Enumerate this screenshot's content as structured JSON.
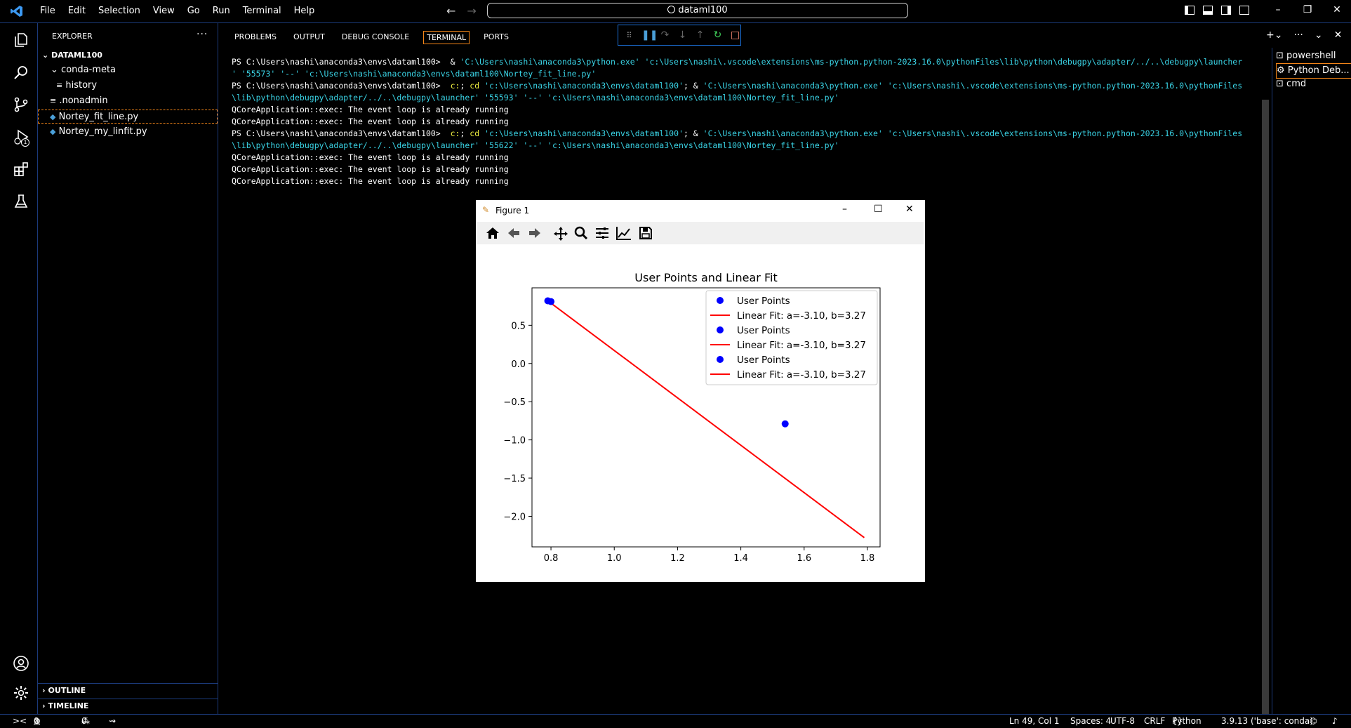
{
  "titlebar": {
    "menu": [
      "File",
      "Edit",
      "Selection",
      "View",
      "Go",
      "Run",
      "Terminal",
      "Help"
    ],
    "search": "dataml100"
  },
  "activity_bar": {
    "icons": [
      "explorer-icon",
      "search-icon",
      "source-control-icon",
      "run-debug-icon",
      "extensions-icon",
      "testing-icon",
      "account-icon",
      "settings-gear-icon"
    ],
    "debug_badge": "1"
  },
  "sidebar": {
    "header": "EXPLORER",
    "more": "···",
    "root": "DATAML100",
    "items": [
      {
        "label": "conda-meta",
        "kind": "folder"
      },
      {
        "label": "history",
        "kind": "file-lines"
      },
      {
        "label": ".nonadmin",
        "kind": "file-lines"
      },
      {
        "label": "Nortey_fit_line.py",
        "kind": "python"
      },
      {
        "label": "Nortey_my_linfit.py",
        "kind": "python"
      }
    ],
    "outline": "OUTLINE",
    "timeline": "TIMELINE"
  },
  "panel": {
    "tabs": [
      "PROBLEMS",
      "OUTPUT",
      "DEBUG CONSOLE",
      "TERMINAL",
      "PORTS"
    ],
    "active_tab": "TERMINAL"
  },
  "terminal_lines": [
    {
      "prompt": "PS C:\\Users\\nashi\\anaconda3\\envs\\dataml100>  ",
      "parts": [
        {
          "t": "& ",
          "c": "w"
        },
        {
          "t": "'C:\\Users\\nashi\\anaconda3\\python.exe' 'c:\\Users\\nashi\\.vscode\\extensions\\ms-python.python-2023.16.0\\pythonFiles\\lib\\python\\debugpy\\adapter/../..\\debugpy\\launcher",
          "c": "c"
        }
      ]
    },
    {
      "prompt": "",
      "parts": [
        {
          "t": "' '55573' '--' 'c:\\Users\\nashi\\anaconda3\\envs\\dataml100\\Nortey_fit_line.py'",
          "c": "c"
        }
      ]
    },
    {
      "prompt": "PS C:\\Users\\nashi\\anaconda3\\envs\\dataml100>  ",
      "parts": [
        {
          "t": "c:",
          "c": "y"
        },
        {
          "t": "; ",
          "c": "w"
        },
        {
          "t": "cd ",
          "c": "y"
        },
        {
          "t": "'c:\\Users\\nashi\\anaconda3\\envs\\dataml100'",
          "c": "c"
        },
        {
          "t": "; & ",
          "c": "w"
        },
        {
          "t": "'C:\\Users\\nashi\\anaconda3\\python.exe' 'c:\\Users\\nashi\\.vscode\\extensions\\ms-python.python-2023.16.0\\pythonFiles",
          "c": "c"
        }
      ]
    },
    {
      "prompt": "",
      "parts": [
        {
          "t": "\\lib\\python\\debugpy\\adapter/../..\\debugpy\\launcher' '55593' '--' 'c:\\Users\\nashi\\anaconda3\\envs\\dataml100\\Nortey_fit_line.py'",
          "c": "c"
        }
      ]
    },
    {
      "prompt": "",
      "parts": [
        {
          "t": "QCoreApplication::exec: The event loop is already running",
          "c": "w"
        }
      ]
    },
    {
      "prompt": "",
      "parts": [
        {
          "t": "QCoreApplication::exec: The event loop is already running",
          "c": "w"
        }
      ]
    },
    {
      "prompt": "PS C:\\Users\\nashi\\anaconda3\\envs\\dataml100>  ",
      "parts": [
        {
          "t": "c:",
          "c": "y"
        },
        {
          "t": "; ",
          "c": "w"
        },
        {
          "t": "cd ",
          "c": "y"
        },
        {
          "t": "'c:\\Users\\nashi\\anaconda3\\envs\\dataml100'",
          "c": "c"
        },
        {
          "t": "; & ",
          "c": "w"
        },
        {
          "t": "'C:\\Users\\nashi\\anaconda3\\python.exe' 'c:\\Users\\nashi\\.vscode\\extensions\\ms-python.python-2023.16.0\\pythonFiles",
          "c": "c"
        }
      ]
    },
    {
      "prompt": "",
      "parts": [
        {
          "t": "\\lib\\python\\debugpy\\adapter/../..\\debugpy\\launcher' '55622' '--' 'c:\\Users\\nashi\\anaconda3\\envs\\dataml100\\Nortey_fit_line.py'",
          "c": "c"
        }
      ]
    },
    {
      "prompt": "",
      "parts": [
        {
          "t": "QCoreApplication::exec: The event loop is already running",
          "c": "w"
        }
      ]
    },
    {
      "prompt": "",
      "parts": [
        {
          "t": "QCoreApplication::exec: The event loop is already running",
          "c": "w"
        }
      ]
    },
    {
      "prompt": "",
      "parts": [
        {
          "t": "QCoreApplication::exec: The event loop is already running",
          "c": "w"
        }
      ]
    }
  ],
  "terminal_list": [
    "powershell",
    "Python Deb...",
    "cmd"
  ],
  "figure_window": {
    "title": "Figure 1",
    "toolbar": [
      "home-icon",
      "back-arrow-icon",
      "forward-arrow-icon",
      "pan-icon",
      "zoom-icon",
      "configure-subplots-icon",
      "edit-axis-icon",
      "save-icon"
    ]
  },
  "chart_data": {
    "type": "scatter",
    "title": "User Points and Linear Fit",
    "xlabel": "",
    "ylabel": "",
    "xlim": [
      0.74,
      1.84
    ],
    "ylim": [
      -2.4,
      0.99
    ],
    "xticks": [
      "0.8",
      "1.0",
      "1.2",
      "1.4",
      "1.6",
      "1.8"
    ],
    "yticks": [
      "0.5",
      "0.0",
      "−0.5",
      "−1.0",
      "−1.5",
      "−2.0"
    ],
    "grid": false,
    "legend_position": "top-right",
    "points": [
      {
        "x": 0.79,
        "y": 0.82
      },
      {
        "x": 0.8,
        "y": 0.81
      },
      {
        "x": 1.54,
        "y": -0.79
      }
    ],
    "fit_line": {
      "slope": -3.1,
      "intercept": 3.27,
      "x_range": [
        0.79,
        1.79
      ]
    },
    "legend": [
      {
        "label": "User Points",
        "kind": "marker",
        "color": "#0000ff"
      },
      {
        "label": "Linear Fit: a=-3.10, b=3.27",
        "kind": "line",
        "color": "#ff0000"
      },
      {
        "label": "User Points",
        "kind": "marker",
        "color": "#0000ff"
      },
      {
        "label": "Linear Fit: a=-3.10, b=3.27",
        "kind": "line",
        "color": "#ff0000"
      },
      {
        "label": "User Points",
        "kind": "marker",
        "color": "#0000ff"
      },
      {
        "label": "Linear Fit: a=-3.10, b=3.27",
        "kind": "line",
        "color": "#ff0000"
      }
    ]
  },
  "status": {
    "remote": "><",
    "errors": "0",
    "warnings": "0",
    "ports": "0",
    "position": "Ln 49, Col 1",
    "spaces": "Spaces: 4",
    "encoding": "UTF-8",
    "eol": "CRLF",
    "language": "Python",
    "interpreter": "3.9.13 ('base': conda)"
  },
  "colors": {
    "accent_border": "#1b3a7a",
    "focus": "#f38518",
    "point": "#0000ff",
    "line": "#ff0000"
  }
}
